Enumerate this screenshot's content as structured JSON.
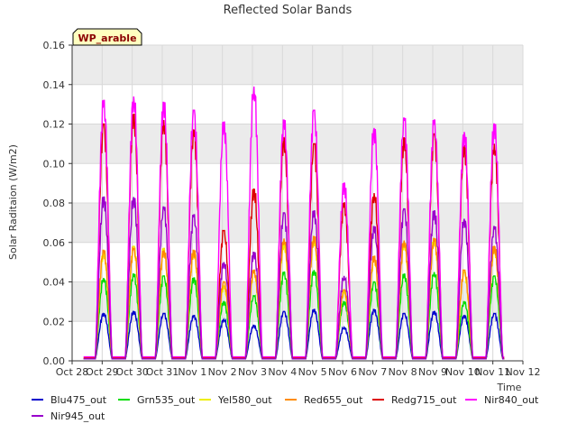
{
  "chart_data": {
    "type": "line",
    "title": "Reflected Solar Bands",
    "ylabel": "Solar Raditaion (W/m2)",
    "xlabel": "Time",
    "site_badge": "WP_arable",
    "ylim": [
      0.0,
      0.16
    ],
    "y_ticks": [
      "0.00",
      "0.02",
      "0.04",
      "0.06",
      "0.08",
      "0.10",
      "0.12",
      "0.14",
      "0.16"
    ],
    "x_ticks": [
      "Oct 28",
      "Oct 29",
      "Oct 30",
      "Oct 31",
      "Nov 1",
      "Nov 2",
      "Nov 3",
      "Nov 4",
      "Nov 5",
      "Nov 6",
      "Nov 7",
      "Nov 8",
      "Nov 9",
      "Nov 10",
      "Nov 11",
      "Nov 12"
    ],
    "xlim_days": [
      0,
      15
    ],
    "grid": true,
    "legend_position": "bottom",
    "days": [
      "Oct 29",
      "Oct 30",
      "Oct 31",
      "Nov 1",
      "Nov 2",
      "Nov 3",
      "Nov 4",
      "Nov 5",
      "Nov 6",
      "Nov 7",
      "Nov 8",
      "Nov 9",
      "Nov 10",
      "Nov 11"
    ],
    "series": [
      {
        "name": "Blu475_out",
        "color": "#0000cc",
        "night": 0.001,
        "daily_peaks": [
          0.024,
          0.025,
          0.024,
          0.023,
          0.021,
          0.018,
          0.025,
          0.026,
          0.017,
          0.026,
          0.024,
          0.025,
          0.023,
          0.024
        ]
      },
      {
        "name": "Grn535_out",
        "color": "#00dd00",
        "night": 0.001,
        "daily_peaks": [
          0.042,
          0.044,
          0.043,
          0.042,
          0.03,
          0.033,
          0.045,
          0.046,
          0.03,
          0.04,
          0.044,
          0.045,
          0.03,
          0.043
        ]
      },
      {
        "name": "Yel580_out",
        "color": "#eeee00",
        "night": 0.001,
        "daily_peaks": [
          0.055,
          0.058,
          0.057,
          0.055,
          0.038,
          0.045,
          0.06,
          0.062,
          0.035,
          0.052,
          0.06,
          0.062,
          0.045,
          0.057
        ]
      },
      {
        "name": "Red655_out",
        "color": "#ff8c00",
        "night": 0.001,
        "daily_peaks": [
          0.056,
          0.057,
          0.056,
          0.056,
          0.04,
          0.046,
          0.062,
          0.063,
          0.036,
          0.053,
          0.061,
          0.062,
          0.046,
          0.058
        ]
      },
      {
        "name": "Redg715_out",
        "color": "#dd0000",
        "night": 0.0015,
        "daily_peaks": [
          0.12,
          0.125,
          0.122,
          0.117,
          0.066,
          0.087,
          0.113,
          0.11,
          0.08,
          0.085,
          0.113,
          0.115,
          0.109,
          0.11
        ]
      },
      {
        "name": "Nir840_out",
        "color": "#ff00ff",
        "night": 0.002,
        "daily_peaks": [
          0.132,
          0.134,
          0.131,
          0.127,
          0.121,
          0.139,
          0.122,
          0.127,
          0.09,
          0.118,
          0.123,
          0.122,
          0.116,
          0.12
        ]
      },
      {
        "name": "Nir945_out",
        "color": "#9900cc",
        "night": 0.001,
        "daily_peaks": [
          0.083,
          0.083,
          0.078,
          0.074,
          0.05,
          0.055,
          0.075,
          0.076,
          0.043,
          0.068,
          0.077,
          0.076,
          0.072,
          0.068
        ]
      }
    ]
  }
}
